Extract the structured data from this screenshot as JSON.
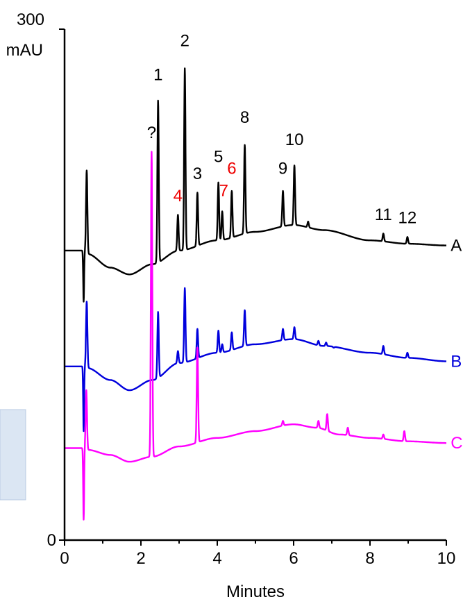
{
  "chart_data": {
    "type": "line",
    "xlabel": "Minutes",
    "ylabel": "mAU",
    "y_top_label": "300",
    "xlim": [
      0,
      10
    ],
    "ylim": [
      0,
      300
    ],
    "x_ticks": [
      0,
      2,
      4,
      6,
      8,
      10
    ],
    "y_ticks": [
      0,
      300
    ],
    "grid": false,
    "colors": {
      "A": "#000000",
      "B": "#0000dd",
      "C": "#ff00ff",
      "red_label": "#ee0000"
    },
    "series": [
      {
        "name": "A",
        "color": "#000000",
        "baseline": [
          [
            0,
            170
          ],
          [
            0.5,
            170
          ],
          [
            0.6,
            168
          ],
          [
            1.2,
            160
          ],
          [
            1.7,
            156
          ],
          [
            2.3,
            162
          ],
          [
            3,
            170
          ],
          [
            4,
            176
          ],
          [
            5,
            181
          ],
          [
            6,
            185
          ],
          [
            6.8,
            182
          ],
          [
            8,
            176
          ],
          [
            9,
            174
          ],
          [
            10,
            173
          ]
        ],
        "dip": [
          0.5,
          140
        ],
        "peaks": [
          {
            "x": 0.58,
            "y": 217
          },
          {
            "x": 2.45,
            "y": 258
          },
          {
            "x": 2.97,
            "y": 191
          },
          {
            "x": 3.15,
            "y": 277
          },
          {
            "x": 3.48,
            "y": 204
          },
          {
            "x": 4.03,
            "y": 210
          },
          {
            "x": 4.13,
            "y": 193
          },
          {
            "x": 4.38,
            "y": 205
          },
          {
            "x": 4.72,
            "y": 232
          },
          {
            "x": 5.72,
            "y": 205
          },
          {
            "x": 6.02,
            "y": 220
          },
          {
            "x": 6.38,
            "y": 187
          },
          {
            "x": 8.35,
            "y": 180
          },
          {
            "x": 8.98,
            "y": 178
          }
        ]
      },
      {
        "name": "B",
        "color": "#0000dd",
        "baseline": [
          [
            0,
            102
          ],
          [
            0.5,
            102
          ],
          [
            0.6,
            101
          ],
          [
            1.2,
            94
          ],
          [
            1.7,
            88
          ],
          [
            2.3,
            94
          ],
          [
            3,
            104
          ],
          [
            4,
            110
          ],
          [
            5,
            115
          ],
          [
            6,
            118
          ],
          [
            6.8,
            114
          ],
          [
            8,
            110
          ],
          [
            9,
            107
          ],
          [
            10,
            105
          ]
        ],
        "dip": [
          0.5,
          64
        ],
        "peaks": [
          {
            "x": 0.58,
            "y": 140
          },
          {
            "x": 2.45,
            "y": 134
          },
          {
            "x": 2.97,
            "y": 111
          },
          {
            "x": 3.15,
            "y": 148
          },
          {
            "x": 3.48,
            "y": 124
          },
          {
            "x": 4.03,
            "y": 123
          },
          {
            "x": 4.13,
            "y": 115
          },
          {
            "x": 4.38,
            "y": 122
          },
          {
            "x": 4.72,
            "y": 135
          },
          {
            "x": 5.72,
            "y": 124
          },
          {
            "x": 6.02,
            "y": 125
          },
          {
            "x": 6.65,
            "y": 117
          },
          {
            "x": 6.85,
            "y": 116
          },
          {
            "x": 7.05,
            "y": 113
          },
          {
            "x": 8.35,
            "y": 114
          },
          {
            "x": 8.98,
            "y": 110
          }
        ]
      },
      {
        "name": "C",
        "color": "#ff00ff",
        "baseline": [
          [
            0,
            54
          ],
          [
            0.5,
            54
          ],
          [
            0.6,
            53
          ],
          [
            1.2,
            50
          ],
          [
            1.7,
            46
          ],
          [
            2.3,
            49
          ],
          [
            3,
            55
          ],
          [
            4,
            60
          ],
          [
            5,
            64
          ],
          [
            6,
            68
          ],
          [
            6.6,
            66
          ],
          [
            7.2,
            62
          ],
          [
            8,
            60
          ],
          [
            9,
            58
          ],
          [
            10,
            57
          ]
        ],
        "dip": [
          0.5,
          12
        ],
        "peaks": [
          {
            "x": 0.57,
            "y": 88
          },
          {
            "x": 2.28,
            "y": 228
          },
          {
            "x": 3.48,
            "y": 113
          },
          {
            "x": 5.72,
            "y": 70
          },
          {
            "x": 6.65,
            "y": 70
          },
          {
            "x": 6.88,
            "y": 74
          },
          {
            "x": 7.42,
            "y": 66
          },
          {
            "x": 8.35,
            "y": 62
          },
          {
            "x": 8.9,
            "y": 64
          }
        ]
      }
    ],
    "peak_labels": [
      {
        "text": "1",
        "x": 2.45,
        "y": 270,
        "color": "#000000"
      },
      {
        "text": "2",
        "x": 3.15,
        "y": 290,
        "color": "#000000"
      },
      {
        "text": "3",
        "x": 3.48,
        "y": 212,
        "color": "#000000"
      },
      {
        "text": "4",
        "x": 2.97,
        "y": 199,
        "color": "#ee0000"
      },
      {
        "text": "5",
        "x": 4.03,
        "y": 222,
        "color": "#000000"
      },
      {
        "text": "6",
        "x": 4.38,
        "y": 215,
        "color": "#ee0000"
      },
      {
        "text": "7",
        "x": 4.17,
        "y": 202,
        "color": "#ee0000"
      },
      {
        "text": "8",
        "x": 4.72,
        "y": 245,
        "color": "#000000"
      },
      {
        "text": "9",
        "x": 5.72,
        "y": 215,
        "color": "#000000"
      },
      {
        "text": "10",
        "x": 6.02,
        "y": 232,
        "color": "#000000"
      },
      {
        "text": "11",
        "x": 8.35,
        "y": 188,
        "color": "#000000"
      },
      {
        "text": "12",
        "x": 8.98,
        "y": 186,
        "color": "#000000"
      },
      {
        "text": "?",
        "x": 2.28,
        "y": 236,
        "color": "#000000"
      }
    ],
    "series_labels": [
      {
        "text": "A",
        "x": 10.15,
        "y": 173,
        "color": "#000000"
      },
      {
        "text": "B",
        "x": 10.15,
        "y": 105,
        "color": "#0000dd"
      },
      {
        "text": "C",
        "x": 10.15,
        "y": 57,
        "color": "#ff00ff"
      }
    ]
  }
}
